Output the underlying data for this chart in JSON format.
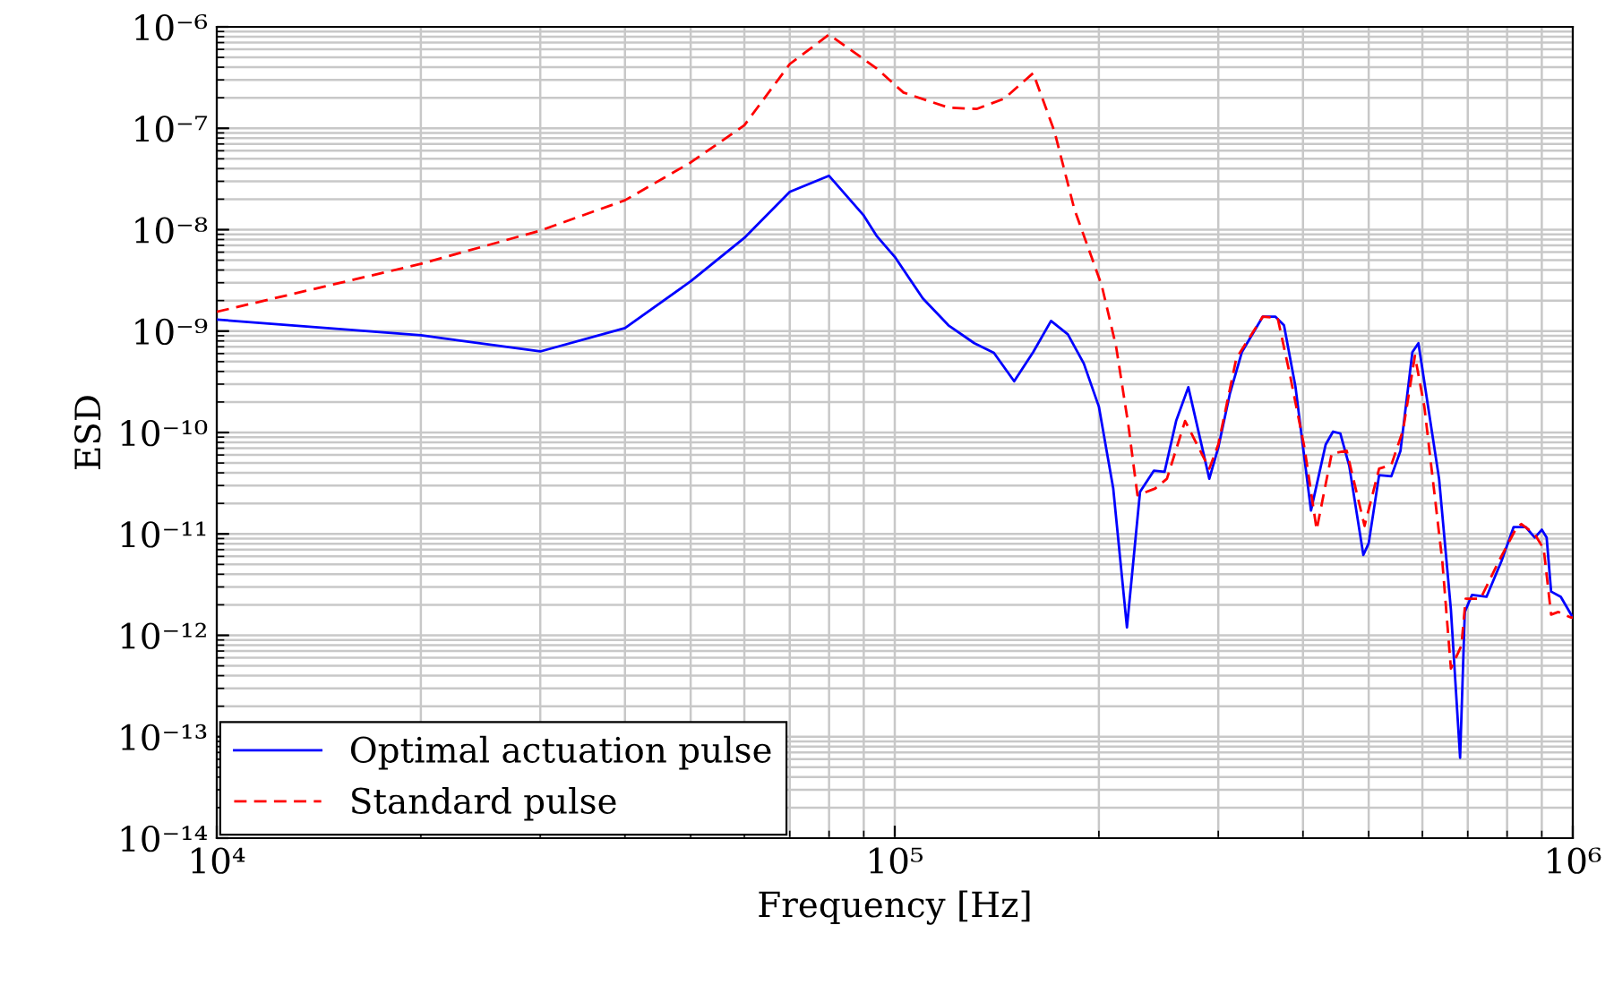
{
  "chart_data": {
    "type": "line",
    "xlabel": "Frequency [Hz]",
    "ylabel": "ESD",
    "log": "xy",
    "grid": true,
    "legend": "bottom left",
    "xlim": [
      10000,
      1000000
    ],
    "xticks": [
      {
        "value": 10000,
        "label": "10⁴"
      },
      {
        "value": 100000,
        "label": "10⁵"
      },
      {
        "value": 1000000,
        "label": "10⁶"
      }
    ],
    "ylim": [
      1e-14,
      1e-06
    ],
    "yticks": [
      {
        "value": 1e-14,
        "label": "10⁻¹⁴"
      },
      {
        "value": 1e-13,
        "label": "10⁻¹³"
      },
      {
        "value": 1e-12,
        "label": "10⁻¹²"
      },
      {
        "value": 1e-11,
        "label": "10⁻¹¹"
      },
      {
        "value": 1e-10,
        "label": "10⁻¹⁰"
      },
      {
        "value": 1e-09,
        "label": "10⁻⁹"
      },
      {
        "value": 1e-08,
        "label": "10⁻⁸"
      },
      {
        "value": 1e-07,
        "label": "10⁻⁷"
      },
      {
        "value": 1e-06,
        "label": "10⁻⁶"
      }
    ],
    "series": [
      {
        "name": "Optimal actuation pulse",
        "color": "#0000ff",
        "line_style": "solid",
        "x": [
          10000,
          20000,
          30000,
          40000,
          50000,
          60000,
          70000,
          80000,
          90000,
          94000,
          100000,
          110000,
          120000,
          131000,
          140000,
          150000,
          160000,
          170000,
          180000,
          190000,
          200000,
          210000,
          220000,
          230000,
          241000,
          250000,
          260000,
          271000,
          291000,
          300000,
          312000,
          325000,
          349000,
          364000,
          375000,
          390000,
          411000,
          432000,
          443000,
          454000,
          468000,
          491000,
          500000,
          518000,
          540000,
          557000,
          580000,
          592000,
          635000,
          661000,
          682000,
          693000,
          710000,
          746000,
          785000,
          818000,
          852000,
          879000,
          900000,
          915000,
          929000,
          960000,
          1000000
        ],
        "values": [
          1.3e-09,
          9.1e-10,
          6.3e-10,
          1.07e-09,
          3.1e-09,
          8.3e-09,
          2.36e-08,
          3.4e-08,
          1.38e-08,
          8.7e-09,
          5.4e-09,
          2.1e-09,
          1.14e-09,
          7.6e-10,
          6.1e-10,
          3.2e-10,
          6.2e-10,
          1.26e-09,
          9.3e-10,
          4.8e-10,
          1.8e-10,
          2.8e-11,
          1.2e-12,
          2.6e-11,
          4.2e-11,
          4.1e-11,
          1.3e-10,
          2.8e-10,
          3.5e-11,
          7.1e-11,
          2.4e-10,
          6.2e-10,
          1.39e-09,
          1.39e-09,
          1.14e-09,
          2.8e-10,
          1.7e-11,
          7.6e-11,
          1.02e-10,
          9.8e-11,
          4.7e-11,
          6.2e-12,
          8.1e-12,
          3.8e-11,
          3.7e-11,
          6.6e-11,
          6.2e-10,
          7.6e-10,
          3.5e-11,
          1.8e-12,
          6.2e-14,
          1.7e-12,
          2.5e-12,
          2.4e-12,
          5.4e-12,
          1.17e-11,
          1.17e-11,
          9.2e-12,
          1.1e-11,
          9.2e-12,
          2.7e-12,
          2.4e-12,
          1.5e-12
        ]
      },
      {
        "name": "Standard pulse",
        "color": "#ff0000",
        "line_style": "dashed",
        "x": [
          10000,
          20000,
          30000,
          40000,
          50000,
          60000,
          70000,
          80000,
          94000,
          103000,
          120000,
          132000,
          145000,
          160000,
          172000,
          184000,
          202000,
          212000,
          221000,
          228000,
          242000,
          252000,
          268000,
          291000,
          300000,
          319000,
          349000,
          367000,
          383000,
          402000,
          419000,
          441000,
          464000,
          493000,
          518000,
          540000,
          562000,
          585000,
          604000,
          642000,
          661000,
          685000,
          695000,
          731000,
          778000,
          827000,
          840000,
          879000,
          906000,
          929000,
          952000,
          993000,
          1000000
        ],
        "values": [
          1.55e-09,
          4.6e-09,
          9.8e-09,
          1.95e-08,
          4.6e-08,
          1.07e-07,
          4.3e-07,
          8.4e-07,
          3.9e-07,
          2.25e-07,
          1.6e-07,
          1.55e-07,
          1.96e-07,
          3.5e-07,
          9.3e-08,
          1.6e-08,
          2.8e-09,
          7.1e-10,
          1.2e-10,
          2.4e-11,
          2.8e-11,
          3.5e-11,
          1.3e-10,
          4.4e-11,
          7.6e-11,
          5.4e-10,
          1.39e-09,
          1.35e-09,
          3.6e-10,
          7.1e-11,
          1.1e-11,
          6.2e-11,
          6.6e-11,
          1.2e-11,
          4.4e-11,
          4.8e-11,
          1.06e-10,
          5.7e-10,
          1.8e-10,
          5.4e-12,
          4.7e-13,
          7.9e-13,
          2.3e-12,
          2.3e-12,
          5.4e-12,
          1.17e-11,
          1.25e-11,
          9.9e-12,
          7.1e-12,
          1.6e-12,
          1.7e-12,
          1.5e-12,
          1.5e-12
        ]
      }
    ]
  }
}
